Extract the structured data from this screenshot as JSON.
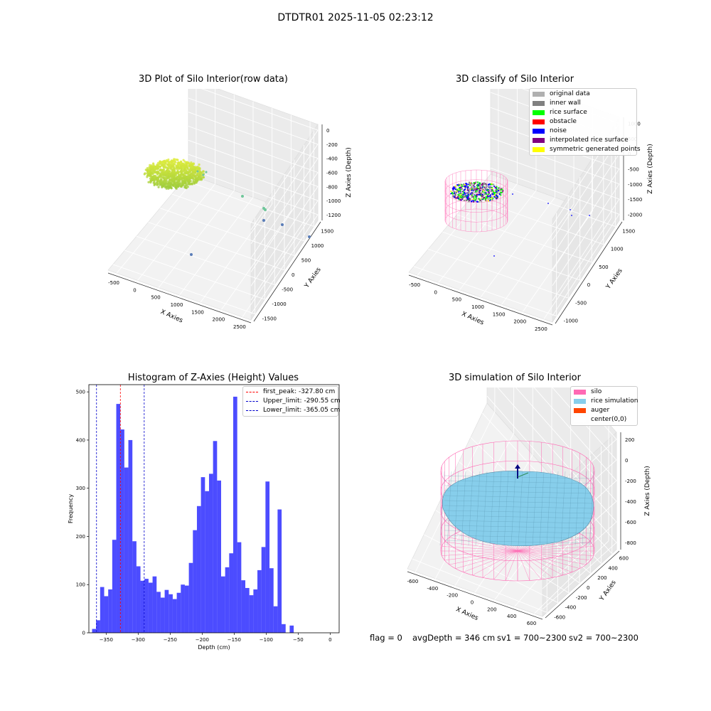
{
  "suptitle": "DTDTR01 2025-11-05 02:23:12",
  "plot1": {
    "title": "3D Plot of Silo Interior(row data)",
    "xlabel": "X Axies",
    "ylabel": "Y Axies",
    "zlabel": "Z Axies (Depth)",
    "xticks": [
      "-500",
      "0",
      "500",
      "1000",
      "1500",
      "2000",
      "2500"
    ],
    "yticks": [
      "-1500",
      "-1000",
      "-500",
      "0",
      "500",
      "1000",
      "1500"
    ],
    "zticks": [
      "0",
      "-200",
      "-400",
      "-600",
      "-800",
      "-1000",
      "-1200"
    ]
  },
  "plot2": {
    "title": "3D classify of Silo Interior",
    "xlabel": "X Axies",
    "ylabel": "Y Axies",
    "zlabel": "Z Axies (Depth)",
    "xticks": [
      "-500",
      "0",
      "500",
      "1000",
      "1500",
      "2000",
      "2500"
    ],
    "yticks": [
      "-1000",
      "-500",
      "0",
      "500",
      "1000",
      "1500"
    ],
    "zticks": [
      "1000",
      "500",
      "0",
      "-500",
      "-1000",
      "-1500",
      "-2000"
    ],
    "legend": [
      {
        "label": "original data",
        "color": "#b0b0b0"
      },
      {
        "label": "inner wall",
        "color": "#808080"
      },
      {
        "label": "rice surface",
        "color": "#00ff00"
      },
      {
        "label": "obstacle",
        "color": "#ff0000"
      },
      {
        "label": "noise",
        "color": "#0000ff"
      },
      {
        "label": "interpolated rice surface",
        "color": "#800080"
      },
      {
        "label": "symmetric generated points",
        "color": "#ffff00"
      }
    ]
  },
  "plot4": {
    "title": "3D simulation of Silo Interior",
    "xlabel": "X Axies",
    "ylabel": "Y Axies",
    "zlabel": "Z Axies (Depth)",
    "xticks": [
      "-600",
      "-400",
      "-200",
      "0",
      "200",
      "400",
      "600"
    ],
    "yticks": [
      "-600",
      "-400",
      "-200",
      "0",
      "200",
      "400",
      "600"
    ],
    "zticks": [
      "200",
      "0",
      "-200",
      "-400",
      "-600",
      "-800"
    ],
    "legend": [
      {
        "label": "silo",
        "color": "#ff69b4"
      },
      {
        "label": "rice simulation",
        "color": "#87ceeb"
      },
      {
        "label": "auger",
        "color": "#ff4500"
      },
      {
        "label": "center(0,0)",
        "color": "#ffffff"
      }
    ]
  },
  "footer": {
    "flag": "flag = 0",
    "avg": "avgDepth = 346 cm",
    "sv1": "sv1 = 700~2300",
    "sv2": "sv2 = 700~2300"
  },
  "chart_data": {
    "type": "bar",
    "title": "Histogram of Z-Axies (Height) Values",
    "xlabel": "Depth (cm)",
    "ylabel": "Frequency",
    "xlim": [
      -377,
      14
    ],
    "ylim": [
      0,
      515
    ],
    "bin_start": -372,
    "bin_width": 6.3,
    "x_ticks": [
      -350,
      -300,
      -250,
      -200,
      -150,
      -100,
      -50,
      0
    ],
    "x_tick_labels": [
      "−350",
      "−300",
      "−250",
      "−200",
      "−150",
      "−100",
      "−50",
      "0"
    ],
    "y_ticks": [
      0,
      100,
      200,
      300,
      400,
      500
    ],
    "values": [
      8,
      26,
      95,
      76,
      90,
      193,
      475,
      422,
      343,
      400,
      190,
      138,
      108,
      112,
      104,
      117,
      85,
      73,
      89,
      80,
      70,
      83,
      100,
      98,
      145,
      213,
      263,
      323,
      294,
      330,
      398,
      316,
      117,
      136,
      165,
      490,
      188,
      109,
      93,
      78,
      90,
      130,
      178,
      314,
      134,
      55,
      256,
      18,
      0,
      15
    ],
    "bar_color": "#0000ff",
    "vlines": [
      {
        "label": "first_peak: -327.80 cm",
        "x": -327.8,
        "color": "#ff0000"
      },
      {
        "label": "Upper_limit: -290.55 cm",
        "x": -290.55,
        "color": "#0000cc"
      },
      {
        "label": "Lower_limit: -365.05 cm",
        "x": -365.05,
        "color": "#0000cc"
      }
    ],
    "legend_position": "upper right",
    "grid": false
  }
}
